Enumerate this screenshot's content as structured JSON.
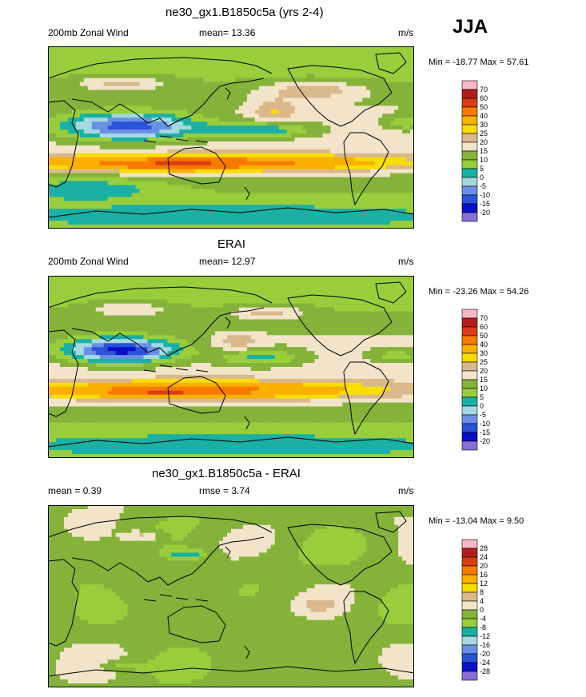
{
  "season": "JJA",
  "colors": {
    "scale": [
      "#8a6fd6",
      "#0a10c8",
      "#2a53d8",
      "#6a90e6",
      "#a5d9e2",
      "#1ab0a4",
      "#98cd3c",
      "#84b23a",
      "#f2e4c8",
      "#d9b98c",
      "#f8dd00",
      "#f9b000",
      "#f77a00",
      "#da3c14",
      "#b21e1e",
      "#f7b7c6",
      "#f0008c"
    ]
  },
  "chart_data": [
    {
      "type": "heatmap",
      "title": "ne30_gx1.B1850c5a (yrs 2-4)",
      "subtitle_left": "200mb Zonal Wind",
      "subtitle_mid": "mean=  13.36",
      "units": "m/s",
      "minmax": "Min = -18.77 Max =  57.61",
      "levels": [
        "70",
        "60",
        "50",
        "40",
        "30",
        "25",
        "20",
        "15",
        "10",
        "5",
        "0",
        "-5",
        "-10",
        "-15",
        "-20"
      ],
      "field": "model"
    },
    {
      "type": "heatmap",
      "title": "ERAI",
      "subtitle_left": "200mb Zonal Wind",
      "subtitle_mid": "mean=  12.97",
      "units": "m/s",
      "minmax": "Min = -23.26 Max =  54.26",
      "levels": [
        "70",
        "60",
        "50",
        "40",
        "30",
        "25",
        "20",
        "15",
        "10",
        "5",
        "0",
        "-5",
        "-10",
        "-15",
        "-20"
      ],
      "field": "obs"
    },
    {
      "type": "heatmap",
      "title": "ne30_gx1.B1850c5a - ERAI",
      "subtitle_left": "mean =   0.39",
      "subtitle_mid": "rmse =   3.74",
      "units": "m/s",
      "minmax": "Min = -13.04 Max =   9.50",
      "levels": [
        "28",
        "24",
        "20",
        "16",
        "12",
        "8",
        "4",
        "0",
        "-4",
        "-8",
        "-12",
        "-16",
        "-20",
        "-24",
        "-28"
      ],
      "field": "diff"
    }
  ]
}
